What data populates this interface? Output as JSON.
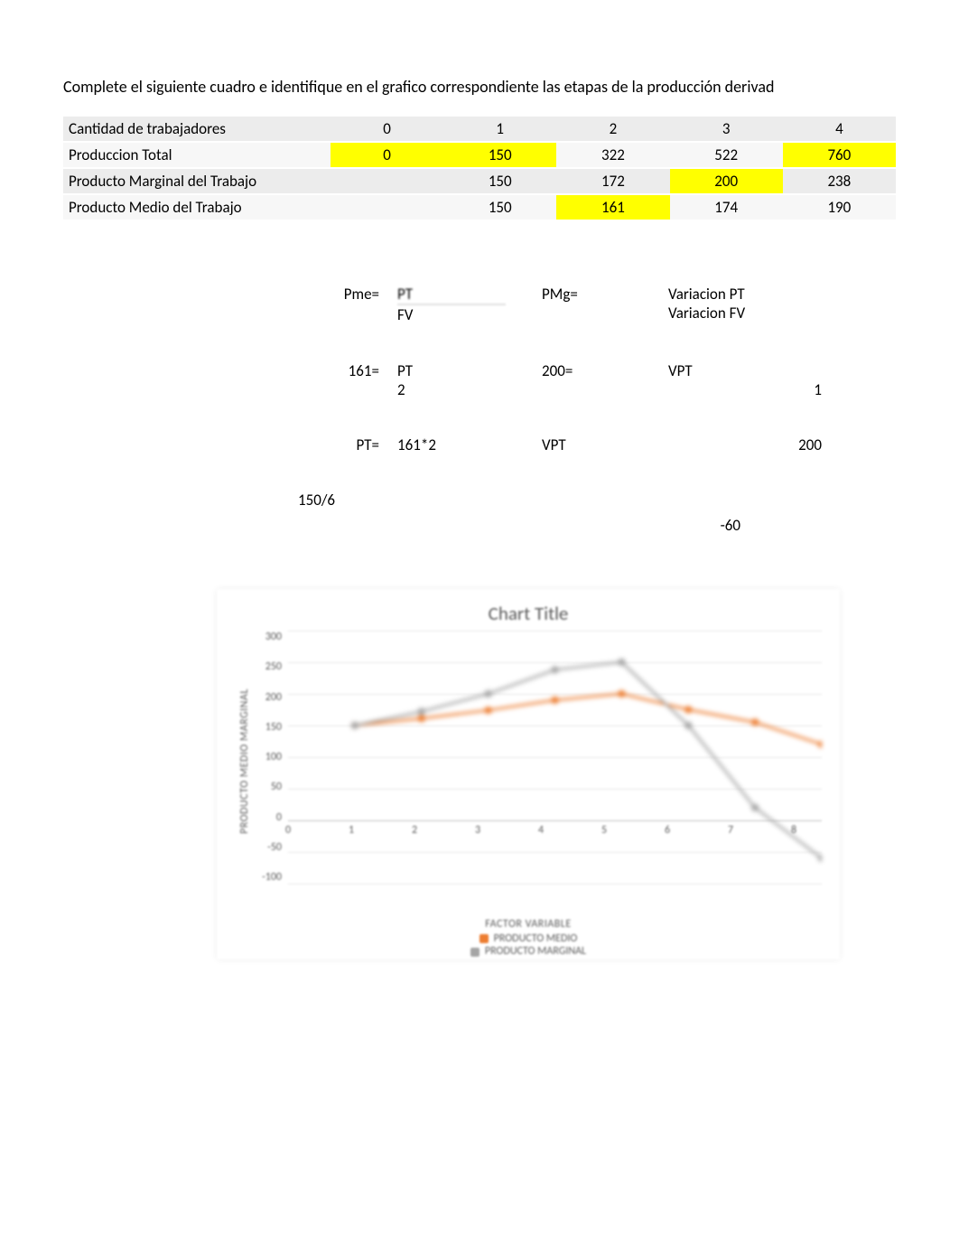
{
  "heading": "Complete el siguiente cuadro e identifique en el grafico correspondiente las etapas de la producción derivad",
  "table": {
    "rows": [
      {
        "label": "Cantidad de trabajadores",
        "cells": [
          {
            "v": "0",
            "hl": false
          },
          {
            "v": "1",
            "hl": false
          },
          {
            "v": "2",
            "hl": false
          },
          {
            "v": "3",
            "hl": false
          },
          {
            "v": "4",
            "hl": false
          }
        ]
      },
      {
        "label": "Produccion Total",
        "cells": [
          {
            "v": "0",
            "hl": true
          },
          {
            "v": "150",
            "hl": true
          },
          {
            "v": "322",
            "hl": false
          },
          {
            "v": "522",
            "hl": false
          },
          {
            "v": "760",
            "hl": true
          }
        ]
      },
      {
        "label": "Producto Marginal del Trabajo",
        "cells": [
          {
            "v": "",
            "hl": false
          },
          {
            "v": "150",
            "hl": false
          },
          {
            "v": "172",
            "hl": false
          },
          {
            "v": "200",
            "hl": true
          },
          {
            "v": "238",
            "hl": false
          }
        ]
      },
      {
        "label": "Producto Medio del Trabajo",
        "cells": [
          {
            "v": "",
            "hl": false
          },
          {
            "v": "150",
            "hl": false
          },
          {
            "v": "161",
            "hl": true
          },
          {
            "v": "174",
            "hl": false
          },
          {
            "v": "190",
            "hl": false
          }
        ]
      }
    ]
  },
  "formulas": {
    "r1": {
      "a": "Pme=",
      "b1": "PT",
      "b2": "FV",
      "c": "PMg=",
      "d1": "Variacion PT",
      "d2": "Variacion FV"
    },
    "r2": {
      "a": "161=",
      "b1": "PT",
      "b2": "2",
      "c": "200=",
      "d1": "VPT",
      "d2": "1"
    },
    "r3": {
      "a": "PT=",
      "b": "161*2",
      "c": "VPT",
      "d": "200"
    }
  },
  "loose": {
    "a": "150/6",
    "b": "-60"
  },
  "chart": {
    "title": "Chart Title",
    "ylabel": "PRODUCTO MEDIO MARGINAL",
    "xlabel": "FACTOR VARIABLE",
    "legend1": "PRODUCTO MEDIO",
    "legend2": "PRODUCTO MARGINAL",
    "ymin": -100,
    "ymax": 300,
    "ystep": 50,
    "yticks": [
      "300",
      "250",
      "200",
      "150",
      "100",
      "50",
      "0",
      "-50",
      "-100"
    ],
    "xvals": [
      0,
      1,
      2,
      3,
      4,
      5,
      6,
      7,
      8
    ],
    "series_medio": [
      null,
      150,
      161,
      174,
      190,
      200,
      175,
      155,
      120
    ],
    "series_marginal": [
      null,
      150,
      172,
      200,
      238,
      250,
      150,
      20,
      -60
    ],
    "color_medio": "#ed7d31",
    "color_marginal": "#a5a5a5",
    "background": "#ffffff",
    "grid_color": "#e6e6e6",
    "text_color": "#595959",
    "marker_size": 4,
    "line_width": 2.5
  }
}
